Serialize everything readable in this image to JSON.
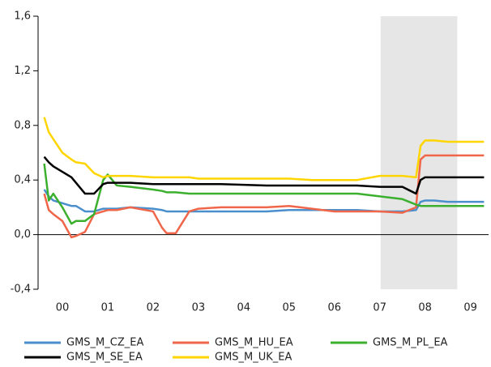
{
  "chart_data": {
    "type": "line",
    "x": [
      0.1,
      0.2,
      0.3,
      0.5,
      0.7,
      0.8,
      1.0,
      1.2,
      1.4,
      1.5,
      1.7,
      2.0,
      2.5,
      2.7,
      2.8,
      3.0,
      3.3,
      3.5,
      4,
      5,
      5.5,
      6,
      6.5,
      7,
      7.5,
      8,
      8.3,
      8.4,
      8.5,
      8.7,
      9,
      9.5,
      9.8
    ],
    "series": [
      {
        "name": "GMS_M_CZ_EA",
        "color": "#4a8fcb",
        "values": [
          0.33,
          0.28,
          0.25,
          0.23,
          0.21,
          0.21,
          0.17,
          0.17,
          0.19,
          0.19,
          0.19,
          0.2,
          0.19,
          0.18,
          0.17,
          0.17,
          0.17,
          0.17,
          0.17,
          0.17,
          0.18,
          0.18,
          0.18,
          0.18,
          0.17,
          0.17,
          0.18,
          0.24,
          0.25,
          0.25,
          0.24,
          0.24,
          0.24
        ]
      },
      {
        "name": "GMS_M_HU_EA",
        "color": "#f0664a",
        "values": [
          0.3,
          0.18,
          0.15,
          0.1,
          -0.02,
          -0.01,
          0.02,
          0.15,
          0.17,
          0.18,
          0.18,
          0.2,
          0.17,
          0.05,
          0.01,
          0.01,
          0.17,
          0.19,
          0.2,
          0.2,
          0.21,
          0.19,
          0.17,
          0.17,
          0.17,
          0.16,
          0.2,
          0.55,
          0.58,
          0.58,
          0.58,
          0.58,
          0.58
        ]
      },
      {
        "name": "GMS_M_PL_EA",
        "color": "#3cb02e",
        "values": [
          0.52,
          0.25,
          0.3,
          0.2,
          0.08,
          0.1,
          0.1,
          0.15,
          0.4,
          0.44,
          0.36,
          0.35,
          0.33,
          0.32,
          0.31,
          0.31,
          0.3,
          0.3,
          0.3,
          0.3,
          0.3,
          0.3,
          0.3,
          0.3,
          0.28,
          0.26,
          0.22,
          0.21,
          0.21,
          0.21,
          0.21,
          0.21,
          0.21
        ]
      },
      {
        "name": "GMS_M_SE_EA",
        "color": "#000000",
        "values": [
          0.57,
          0.53,
          0.5,
          0.46,
          0.42,
          0.38,
          0.3,
          0.3,
          0.37,
          0.38,
          0.38,
          0.38,
          0.37,
          0.37,
          0.37,
          0.37,
          0.37,
          0.37,
          0.37,
          0.36,
          0.36,
          0.36,
          0.36,
          0.36,
          0.35,
          0.35,
          0.3,
          0.4,
          0.42,
          0.42,
          0.42,
          0.42,
          0.42
        ]
      },
      {
        "name": "GMS_M_UK_EA",
        "color": "#ffd500",
        "values": [
          0.86,
          0.75,
          0.7,
          0.6,
          0.55,
          0.53,
          0.52,
          0.45,
          0.42,
          0.43,
          0.43,
          0.43,
          0.42,
          0.42,
          0.42,
          0.42,
          0.42,
          0.41,
          0.41,
          0.41,
          0.41,
          0.4,
          0.4,
          0.4,
          0.43,
          0.43,
          0.42,
          0.65,
          0.69,
          0.69,
          0.68,
          0.68,
          0.68
        ]
      }
    ],
    "xlim": [
      0,
      9.9
    ],
    "xticks": [
      {
        "value": 0.5,
        "label": "00"
      },
      {
        "value": 1.5,
        "label": "01"
      },
      {
        "value": 2.5,
        "label": "02"
      },
      {
        "value": 3.5,
        "label": "03"
      },
      {
        "value": 4.5,
        "label": "04"
      },
      {
        "value": 5.5,
        "label": "05"
      },
      {
        "value": 6.5,
        "label": "06"
      },
      {
        "value": 7.5,
        "label": "07"
      },
      {
        "value": 8.5,
        "label": "08"
      },
      {
        "value": 9.5,
        "label": "09"
      }
    ],
    "ylim": [
      -0.4,
      1.6
    ],
    "yticks": [
      {
        "value": -0.4,
        "label": "-0,4"
      },
      {
        "value": 0,
        "label": "0,0"
      },
      {
        "value": 0.4,
        "label": "0,4"
      },
      {
        "value": 0.8,
        "label": "0,8"
      },
      {
        "value": 1.2,
        "label": "1,2"
      },
      {
        "value": 1.6,
        "label": "1,6"
      }
    ],
    "shaded_xrange": [
      7.52,
      9.21
    ],
    "shade_color": "#e6e6e6"
  }
}
